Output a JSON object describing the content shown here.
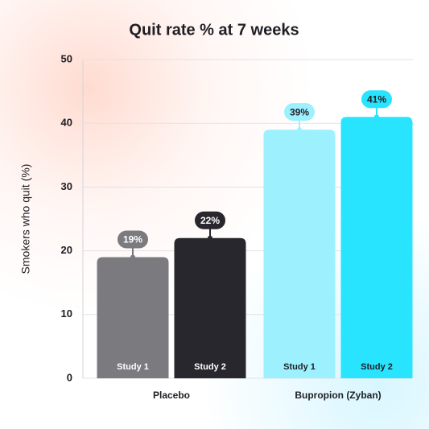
{
  "chart_data": {
    "type": "bar",
    "title": "Quit rate % at 7 weeks",
    "y_label": "Smokers who quit (%)",
    "categories": [
      "Placebo",
      "Bupropion (Zyban)"
    ],
    "series": [
      {
        "name": "Study 1",
        "colors": [
          "#7b7a7f",
          "#9df1ff"
        ],
        "values": [
          19,
          39
        ],
        "value_labels": [
          "19%",
          "39%"
        ]
      },
      {
        "name": "Study 2",
        "colors": [
          "#27272d",
          "#28e4ff"
        ],
        "values": [
          22,
          41
        ],
        "value_labels": [
          "22%",
          "41%"
        ]
      }
    ],
    "ylim": [
      0,
      50
    ],
    "yticks": [
      0,
      10,
      20,
      30,
      40,
      50
    ],
    "grid": true
  }
}
